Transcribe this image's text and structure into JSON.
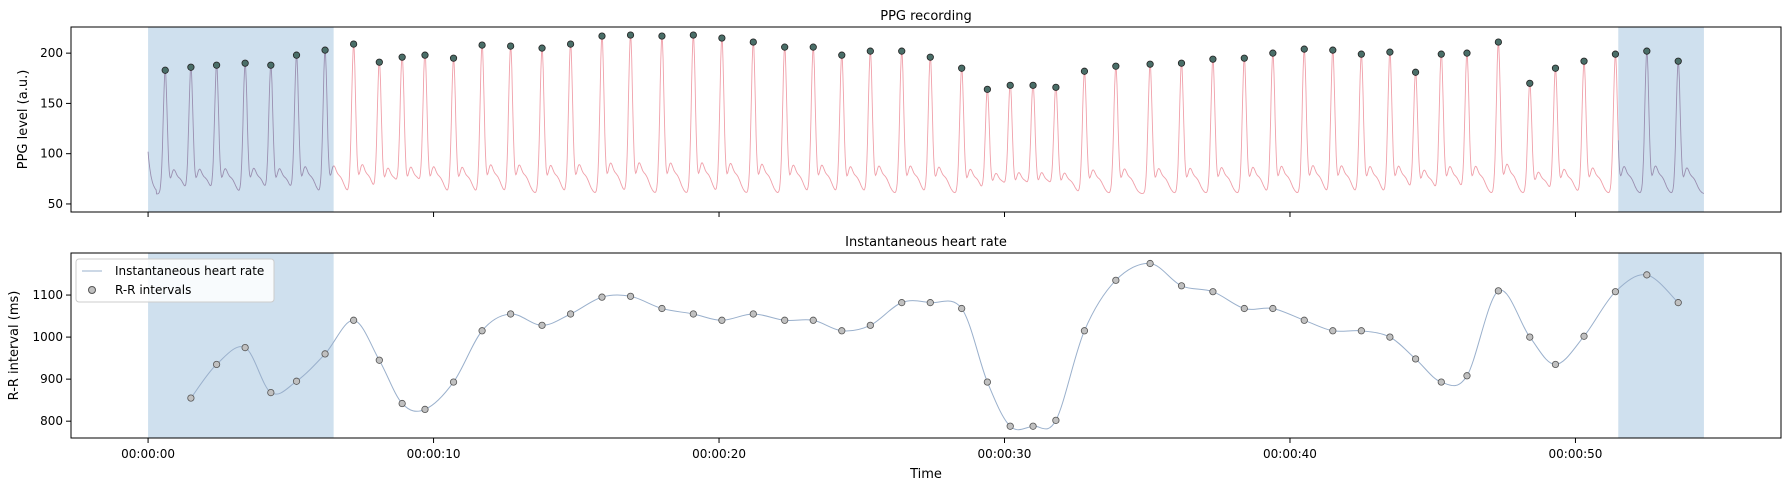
{
  "chart_data": [
    {
      "type": "line",
      "title": "PPG recording",
      "ylabel": "PPG level (a.u.)",
      "xlabel": "",
      "xlim": [
        -2.7,
        57.2
      ],
      "ylim": [
        42,
        226
      ],
      "yticks": [
        50,
        100,
        150,
        200
      ],
      "xticks": [
        0,
        10,
        20,
        30,
        40,
        50
      ],
      "xticklabels_visible": false,
      "shaded_regions": [
        [
          0,
          6.5
        ],
        [
          51.5,
          54.5
        ]
      ],
      "colors": {
        "signal_in_shade": "#9a8fb0",
        "signal": "#f0a0aa",
        "shade": "#cfe0ee",
        "peak_fill": "#4a6e68",
        "peak_edge": "#222222"
      },
      "peaks": {
        "t": [
          0.6,
          1.5,
          2.4,
          3.4,
          4.3,
          5.2,
          6.2,
          7.2,
          8.1,
          8.9,
          9.7,
          10.7,
          11.7,
          12.7,
          13.8,
          14.8,
          15.9,
          16.9,
          18.0,
          19.1,
          20.1,
          21.2,
          22.3,
          23.3,
          24.3,
          25.3,
          26.4,
          27.4,
          28.5,
          29.4,
          30.2,
          31.0,
          31.8,
          32.8,
          33.9,
          35.1,
          36.2,
          37.3,
          38.4,
          39.4,
          40.5,
          41.5,
          42.5,
          43.5,
          44.4,
          45.3,
          46.2,
          47.3,
          48.4,
          49.3,
          50.3,
          51.4,
          52.5,
          53.6
        ],
        "y": [
          183,
          186,
          188,
          190,
          188,
          198,
          203,
          209,
          191,
          196,
          198,
          195,
          208,
          207,
          205,
          209,
          217,
          218,
          217,
          218,
          215,
          211,
          206,
          206,
          198,
          202,
          202,
          196,
          185,
          164,
          168,
          168,
          166,
          182,
          187,
          189,
          190,
          194,
          195,
          200,
          204,
          203,
          199,
          201,
          181,
          199,
          200,
          211,
          170,
          185,
          192,
          199,
          202,
          192
        ]
      }
    },
    {
      "type": "line",
      "title": "Instantaneous heart rate",
      "ylabel": "R-R interval (ms)",
      "xlabel": "Time",
      "xlim": [
        -2.7,
        57.2
      ],
      "ylim": [
        760,
        1200
      ],
      "yticks": [
        800,
        900,
        1000,
        1100
      ],
      "xticks": [
        0,
        10,
        20,
        30,
        40,
        50
      ],
      "xticklabels": [
        "00:00:00",
        "00:00:10",
        "00:00:20",
        "00:00:30",
        "00:00:40",
        "00:00:50"
      ],
      "shaded_regions": [
        [
          0,
          6.5
        ],
        [
          51.5,
          54.5
        ]
      ],
      "legend": {
        "placement": "top-left",
        "entries": [
          "Instantaneous heart rate",
          "R-R intervals"
        ]
      },
      "colors": {
        "line": "#9ab0cc",
        "marker_fill": "#c0c0c0",
        "marker_edge": "#555555",
        "shade": "#cfe0ee"
      },
      "series": [
        {
          "name": "R-R intervals",
          "t": [
            1.5,
            2.4,
            3.4,
            4.3,
            5.2,
            6.2,
            7.2,
            8.1,
            8.9,
            9.7,
            10.7,
            11.7,
            12.7,
            13.8,
            14.8,
            15.9,
            16.9,
            18.0,
            19.1,
            20.1,
            21.2,
            22.3,
            23.3,
            24.3,
            25.3,
            26.4,
            27.4,
            28.5,
            29.4,
            30.2,
            31.0,
            31.8,
            32.8,
            33.9,
            35.1,
            36.2,
            37.3,
            38.4,
            39.4,
            40.5,
            41.5,
            42.5,
            43.5,
            44.4,
            45.3,
            46.2,
            47.3,
            48.4,
            49.3,
            50.3,
            51.4,
            52.5,
            53.6
          ],
          "values": [
            855,
            935,
            975,
            868,
            895,
            960,
            1040,
            945,
            842,
            828,
            893,
            1015,
            1055,
            1028,
            1055,
            1095,
            1097,
            1068,
            1055,
            1040,
            1055,
            1040,
            1040,
            1015,
            1028,
            1082,
            1082,
            1068,
            893,
            788,
            788,
            802,
            1015,
            1135,
            1175,
            1122,
            1108,
            1068,
            1068,
            1040,
            1015,
            1015,
            1000,
            948,
            893,
            908,
            1110,
            1000,
            935,
            1002,
            1108,
            1148,
            1082
          ]
        }
      ]
    }
  ]
}
